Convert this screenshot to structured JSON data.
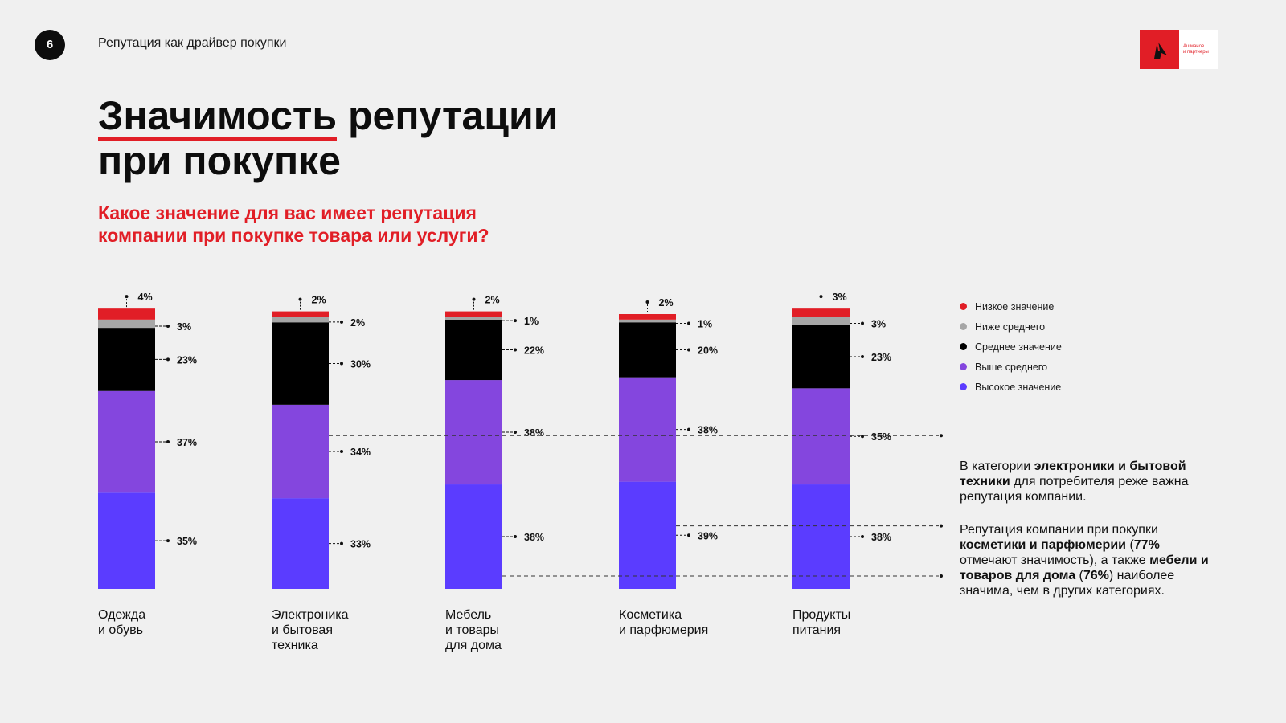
{
  "header": {
    "page_number": "6",
    "section_title": "Репутация как драйвер покупки",
    "logo_text_line1": "Ашманов",
    "logo_text_line2": "и партнеры"
  },
  "title": {
    "part1": "Значимость",
    "part2": " репутации",
    "part3": "при покупке"
  },
  "subtitle": {
    "line1": "Какое значение для вас имеет репутация",
    "line2": "компании при покупке товара или услуги?"
  },
  "colors": {
    "low": "#e11e26",
    "below_avg": "#a6a6a6",
    "avg": "#000000",
    "above_avg": "#8446de",
    "high": "#5b3cff",
    "accent": "#e11e26"
  },
  "chart_data": {
    "type": "bar",
    "stacked": true,
    "categories": [
      "Одежда и обувь",
      "Электроника и бытовая техника",
      "Мебель и товары для дома",
      "Косметика и парфюмерия",
      "Продукты питания"
    ],
    "categories_lines": [
      [
        "Одежда",
        "и обувь"
      ],
      [
        "Электроника",
        "и бытовая",
        "техника"
      ],
      [
        "Мебель",
        "и товары",
        "для дома"
      ],
      [
        "Косметика",
        "и парфюмерия"
      ],
      [
        "Продукты",
        "питания"
      ]
    ],
    "series": [
      {
        "name": "Высокое значение",
        "key": "high",
        "values": [
          35,
          33,
          38,
          39,
          38
        ]
      },
      {
        "name": "Выше среднего",
        "key": "above_avg",
        "values": [
          37,
          34,
          38,
          38,
          35
        ]
      },
      {
        "name": "Среднее значение",
        "key": "avg",
        "values": [
          23,
          30,
          22,
          20,
          23
        ]
      },
      {
        "name": "Ниже среднего",
        "key": "below_avg",
        "values": [
          3,
          2,
          1,
          1,
          3
        ]
      },
      {
        "name": "Низкое значение",
        "key": "low",
        "values": [
          4,
          2,
          2,
          2,
          3
        ]
      }
    ],
    "value_suffix": "%",
    "legend_order": [
      "low",
      "below_avg",
      "avg",
      "above_avg",
      "high"
    ],
    "legend_position": "right",
    "grid": false
  },
  "notes": [
    {
      "parts": [
        {
          "t": "В категории ",
          "b": false
        },
        {
          "t": "электроники и бытовой техники",
          "b": true
        },
        {
          "t": " для потребителя реже важна репутация компании.",
          "b": false
        }
      ]
    },
    {
      "parts": [
        {
          "t": "Репутация компании при покупки ",
          "b": false
        },
        {
          "t": "косметики и парфюмерии",
          "b": true
        },
        {
          "t": " (",
          "b": false
        },
        {
          "t": "77%",
          "b": true
        },
        {
          "t": " отмечают значимость), а также ",
          "b": false
        },
        {
          "t": "мебели и товаров для дома",
          "b": true
        },
        {
          "t": " (",
          "b": false
        },
        {
          "t": "76%",
          "b": true
        },
        {
          "t": ") наиболее значима, чем в других категориях.",
          "b": false
        }
      ]
    }
  ]
}
